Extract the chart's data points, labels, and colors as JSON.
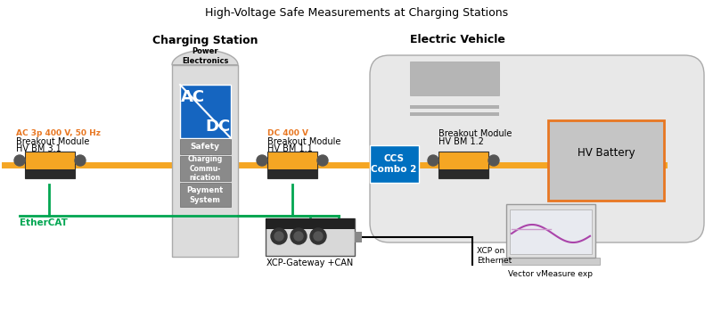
{
  "title": "High-Voltage Safe Measurements at Charging Stations",
  "bg_color": "#ffffff",
  "orange": "#F5A623",
  "green": "#00A651",
  "blue": "#0070C0",
  "car_body_color": "#E8E8E8",
  "charging_color": "#DCDCDC",
  "ac_dc_blue": "#1565C0",
  "text_orange": "#E87722",
  "gray_box": "#8a8a8a",
  "labels": {
    "charging_station": "Charging Station",
    "electric_vehicle": "Electric Vehicle",
    "power_electronics": "Power\nElectronics",
    "safety": "Safety",
    "charging_comm": "Charging\nCommu-\nnication",
    "payment": "Payment\nSystem",
    "bm31_label1": "AC 3p 400 V, 50 Hz",
    "bm31_label2": "Breakout Module",
    "bm31_label3": "HV BM 3.1",
    "bm11_label1": "DC 400 V",
    "bm11_label2": "Breakout Module",
    "bm11_label3": "HV BM 1.1",
    "bm12_label2": "Breakout Module",
    "bm12_label3": "HV BM 1.2",
    "hv_battery": "HV Battery",
    "ccs": "CCS\nCombo 2",
    "xcp_gateway": "XCP-Gateway +CAN",
    "xcp_ethernet": "XCP on\nEthernet",
    "ethercat": "EtherCAT",
    "vmeasure": "Vector vMeasure exp"
  }
}
